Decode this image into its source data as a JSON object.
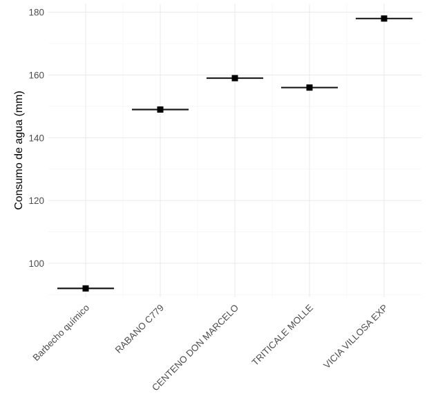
{
  "chart_data": {
    "type": "scatter",
    "title": "",
    "xlabel": "",
    "ylabel": "Consumo de agua (mm)",
    "ylim": [
      89.2,
      182.8
    ],
    "yticks": [
      100,
      120,
      140,
      160,
      180
    ],
    "grid": true,
    "categories": [
      "Barbecho químico",
      "RABANO C779",
      "CENTENO DON MARCELO",
      "TRITICALE MOLLE",
      "VICIA VILLOSA  EXP"
    ],
    "values": [
      92,
      149,
      159,
      156,
      178
    ],
    "marker": "square",
    "point_color": "#000000",
    "segment_color": "#1a1a1a"
  }
}
